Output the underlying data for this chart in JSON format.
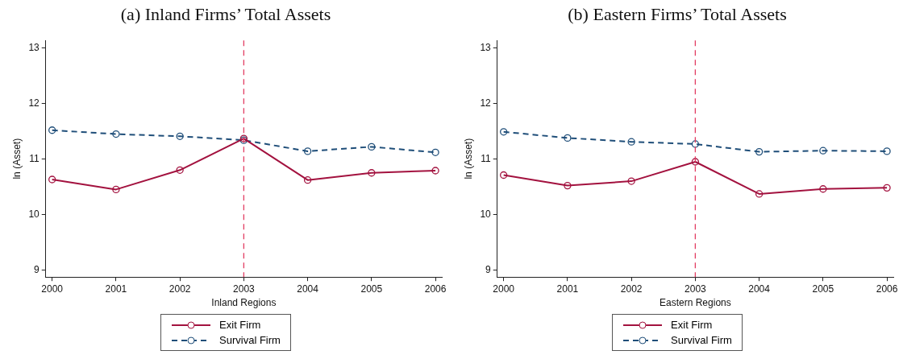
{
  "chart_data": [
    {
      "type": "line",
      "title": "(a) Inland Firms’ Total Assets",
      "xlabel": "Inland Regions",
      "ylabel": "ln (Asset)",
      "x": [
        2000,
        2001,
        2002,
        2003,
        2004,
        2005,
        2006
      ],
      "series": [
        {
          "name": "Exit Firm",
          "color": "#a3123f",
          "line_style": "solid",
          "values": [
            10.63,
            10.45,
            10.8,
            11.37,
            10.62,
            10.75,
            10.79
          ]
        },
        {
          "name": "Survival Firm",
          "color": "#1f4e79",
          "line_style": "dashed",
          "values": [
            11.52,
            11.45,
            11.41,
            11.34,
            11.14,
            11.22,
            11.12
          ]
        }
      ],
      "xlim": [
        1999.9,
        2006.1
      ],
      "xticks": [
        2000,
        2001,
        2002,
        2003,
        2004,
        2005,
        2006
      ],
      "ylim": [
        8.87,
        13.14
      ],
      "yticks": [
        9,
        10,
        11,
        12,
        13
      ],
      "ref_lines": [
        {
          "axis": "x",
          "value": 2003,
          "color": "#e23d63",
          "line_style": "dashed"
        }
      ],
      "grid": false,
      "legend": "bottom",
      "marker": "circle"
    },
    {
      "type": "line",
      "title": "(b) Eastern Firms’ Total Assets",
      "xlabel": "Eastern Regions",
      "ylabel": "ln (Asset)",
      "x": [
        2000,
        2001,
        2002,
        2003,
        2004,
        2005,
        2006
      ],
      "series": [
        {
          "name": "Exit Firm",
          "color": "#a3123f",
          "line_style": "solid",
          "values": [
            10.71,
            10.52,
            10.6,
            10.95,
            10.37,
            10.46,
            10.48
          ]
        },
        {
          "name": "Survival Firm",
          "color": "#1f4e79",
          "line_style": "dashed",
          "values": [
            11.49,
            11.38,
            11.31,
            11.27,
            11.13,
            11.15,
            11.14
          ]
        }
      ],
      "xlim": [
        1999.9,
        2006.1
      ],
      "xticks": [
        2000,
        2001,
        2002,
        2003,
        2004,
        2005,
        2006
      ],
      "ylim": [
        8.87,
        13.14
      ],
      "yticks": [
        9,
        10,
        11,
        12,
        13
      ],
      "ref_lines": [
        {
          "axis": "x",
          "value": 2003,
          "color": "#e23d63",
          "line_style": "dashed"
        }
      ],
      "grid": false,
      "legend": "bottom",
      "marker": "circle"
    }
  ]
}
